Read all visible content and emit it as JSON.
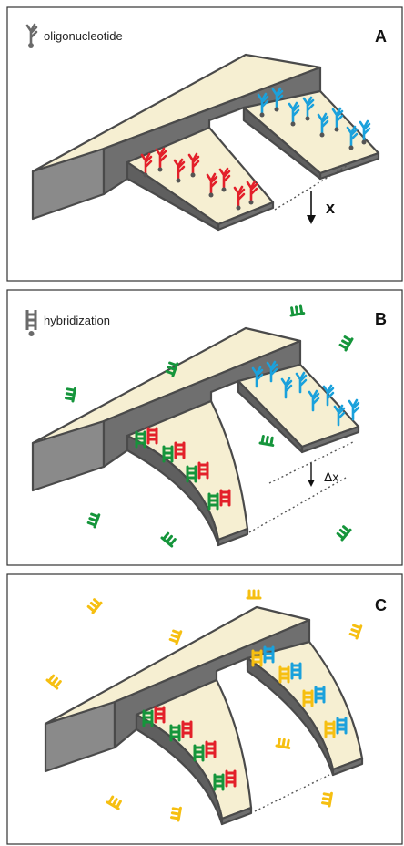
{
  "panels": [
    {
      "letter": "A",
      "legend": "oligonucleotide",
      "displacement": "x"
    },
    {
      "letter": "B",
      "legend": "hybridization",
      "displacement": "Δx"
    },
    {
      "letter": "C"
    }
  ],
  "colors": {
    "beam_top": "#f6efd2",
    "beam_side": "#8a8a8a",
    "beam_dark": "#5f5f5f",
    "beam_edge": "#4a4a4a",
    "oligo_red": "#e3202a",
    "oligo_blue": "#1aa1dc",
    "oligo_green": "#15953b",
    "oligo_yellow": "#f6bf11",
    "oligo_icon": "#6a6a6a",
    "frame": "#333333"
  },
  "icons": {
    "legend_a": "oligonucleotide-icon",
    "legend_b": "hybridization-icon"
  }
}
